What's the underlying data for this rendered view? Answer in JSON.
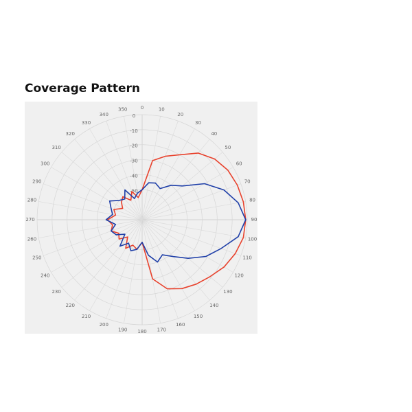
{
  "chart_data": {
    "type": "polar",
    "title": "Coverage Pattern",
    "x": [
      0,
      10,
      20,
      30,
      40,
      50,
      60,
      70,
      80,
      90,
      100,
      110,
      120,
      130,
      140,
      150,
      160,
      170,
      180,
      190,
      200,
      210,
      220,
      230,
      240,
      250,
      260,
      270,
      280,
      290,
      300,
      310,
      320,
      330,
      340,
      350
    ],
    "xticks": [
      0,
      10,
      20,
      30,
      40,
      50,
      60,
      70,
      80,
      90,
      100,
      110,
      120,
      130,
      140,
      150,
      160,
      170,
      180,
      190,
      200,
      210,
      220,
      230,
      240,
      250,
      260,
      270,
      280,
      290,
      300,
      310,
      320,
      330,
      340,
      350
    ],
    "ylim": [
      -70,
      0
    ],
    "yticks": [
      0,
      -10,
      -20,
      -30,
      -40,
      -50
    ],
    "grid": true,
    "series": [
      {
        "color": "#e8412c",
        "values": [
          -50,
          -30,
          -25,
          -20,
          -12,
          -7,
          -4,
          -2.5,
          -1.5,
          -1,
          -1.5,
          -4,
          -7,
          -11,
          -14,
          -17,
          -21,
          -30,
          -55,
          -50,
          -52,
          -48,
          -55,
          -50,
          -52,
          -48,
          -50,
          -47,
          -52,
          -50,
          -55,
          -52,
          -50,
          -55,
          -50,
          -55
        ]
      },
      {
        "color": "#1f3fa8",
        "values": [
          -50,
          -45,
          -44,
          -46,
          -40,
          -35,
          -22,
          -12,
          -5,
          -1,
          -5,
          -14,
          -21,
          -30,
          -38,
          -43,
          -40,
          -46,
          -55,
          -50,
          -48,
          -52,
          -47,
          -55,
          -50,
          -48,
          -52,
          -46,
          -50,
          -48,
          -45,
          -50,
          -52,
          -47,
          -55,
          -52
        ]
      }
    ]
  }
}
